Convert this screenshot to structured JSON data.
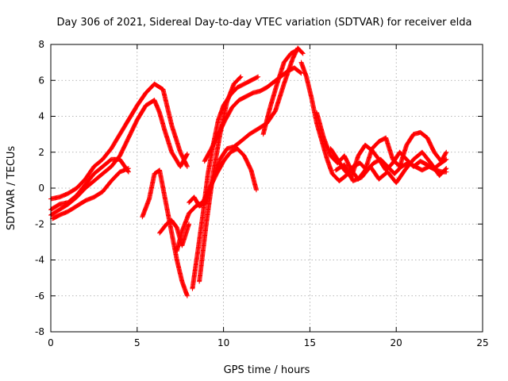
{
  "chart_data": {
    "type": "scatter",
    "title": "Day 306 of 2021, Sidereal Day-to-day VTEC variation (SDTVAR) for receiver elda",
    "xlabel": "GPS time / hours",
    "ylabel": "SDTVAR / TECUs",
    "xlim": [
      0,
      25
    ],
    "ylim": [
      -8,
      8
    ],
    "xticks": [
      0,
      5,
      10,
      15,
      20,
      25
    ],
    "yticks": [
      -8,
      -6,
      -4,
      -2,
      0,
      2,
      4,
      6,
      8
    ],
    "xtick_labels": [
      "0",
      "5",
      "10",
      "15",
      "20",
      "25"
    ],
    "ytick_labels": [
      "-8",
      "-6",
      "-4",
      "-2",
      "0",
      "2",
      "4",
      "6",
      "8"
    ],
    "grid": true,
    "marker": "plus",
    "color": "#ff0000",
    "series": [
      {
        "x": [
          0.0,
          0.5,
          1.0,
          1.5,
          2.0,
          2.5,
          3.0,
          3.5,
          4.0,
          4.5,
          5.0,
          5.5,
          6.0,
          6.5,
          7.0,
          7.5,
          7.9
        ],
        "y": [
          -0.6,
          -0.5,
          -0.3,
          0.0,
          0.5,
          1.2,
          1.6,
          2.2,
          3.0,
          3.8,
          4.6,
          5.3,
          5.8,
          5.5,
          3.5,
          2.0,
          1.2
        ]
      },
      {
        "x": [
          0.0,
          0.5,
          1.0,
          1.5,
          2.0,
          2.5,
          3.0,
          3.5,
          4.0,
          4.5,
          5.0,
          5.5,
          6.0,
          6.3,
          6.6,
          7.0,
          7.5,
          7.9
        ],
        "y": [
          -1.5,
          -1.2,
          -0.9,
          -0.5,
          0.0,
          0.4,
          0.8,
          1.2,
          1.8,
          2.8,
          3.8,
          4.6,
          4.9,
          4.2,
          3.2,
          2.0,
          1.2,
          1.9
        ]
      },
      {
        "x": [
          0.0,
          0.5,
          1.0,
          1.5,
          2.0,
          2.5,
          3.0,
          3.5,
          4.0,
          4.5
        ],
        "y": [
          -1.2,
          -0.9,
          -0.8,
          -0.4,
          0.2,
          0.8,
          1.2,
          1.6,
          1.6,
          0.9
        ]
      },
      {
        "x": [
          0.1,
          0.5,
          1.0,
          1.5,
          2.0,
          2.5,
          3.0,
          3.5,
          4.0,
          4.5
        ],
        "y": [
          -1.7,
          -1.5,
          -1.3,
          -1.0,
          -0.7,
          -0.5,
          -0.2,
          0.4,
          0.9,
          1.1
        ]
      },
      {
        "x": [
          5.3,
          5.7,
          6.0,
          6.3,
          6.6,
          7.0,
          7.3,
          7.6,
          7.9
        ],
        "y": [
          -1.6,
          -0.6,
          0.8,
          1.0,
          -0.5,
          -2.5,
          -4.0,
          -5.2,
          -6.0
        ]
      },
      {
        "x": [
          6.3,
          6.7,
          7.0,
          7.3,
          7.6,
          8.0
        ],
        "y": [
          -2.5,
          -2.0,
          -1.8,
          -2.2,
          -3.2,
          -2.0
        ]
      },
      {
        "x": [
          7.3,
          7.6,
          8.0,
          8.4,
          8.8,
          9.2,
          9.6,
          10.0,
          10.4,
          10.8,
          11.2,
          11.6,
          11.9
        ],
        "y": [
          -3.5,
          -2.4,
          -1.4,
          -1.0,
          -0.8,
          0.0,
          0.8,
          1.5,
          2.0,
          2.2,
          1.8,
          1.0,
          -0.1
        ]
      },
      {
        "x": [
          8.2,
          8.5,
          8.8,
          9.1,
          9.4,
          9.7,
          10.0,
          10.4,
          10.8,
          11.2,
          11.6,
          12.0
        ],
        "y": [
          -5.6,
          -3.6,
          -1.5,
          0.8,
          2.4,
          3.8,
          4.6,
          5.2,
          5.6,
          5.8,
          6.0,
          6.2
        ]
      },
      {
        "x": [
          8.0,
          8.3,
          8.6,
          9.0,
          9.4,
          9.8,
          10.2,
          10.6,
          11.0,
          11.5,
          12.0,
          12.5,
          13.0,
          13.5,
          14.0,
          14.3,
          14.6
        ],
        "y": [
          -0.8,
          -0.5,
          -1.0,
          -0.8,
          0.5,
          1.6,
          2.2,
          2.3,
          2.6,
          3.0,
          3.3,
          3.6,
          4.3,
          5.8,
          7.2,
          7.8,
          7.5
        ]
      },
      {
        "x": [
          8.6,
          9.0,
          9.4,
          9.8,
          10.2,
          10.6,
          11.0
        ],
        "y": [
          -5.2,
          -2.0,
          0.8,
          3.0,
          4.8,
          5.8,
          6.2
        ]
      },
      {
        "x": [
          8.9,
          9.3,
          9.7,
          10.1,
          10.5,
          10.9,
          11.3,
          11.7,
          12.1,
          12.5,
          12.9,
          13.3,
          13.7,
          14.1,
          14.5
        ],
        "y": [
          1.5,
          2.2,
          3.0,
          3.8,
          4.5,
          4.9,
          5.1,
          5.3,
          5.4,
          5.6,
          5.9,
          6.2,
          6.5,
          6.7,
          6.4
        ]
      },
      {
        "x": [
          12.3,
          12.7,
          13.1,
          13.5,
          13.9,
          14.3
        ],
        "y": [
          3.0,
          4.5,
          5.8,
          7.0,
          7.5,
          7.7
        ]
      },
      {
        "x": [
          14.5,
          14.8,
          15.1,
          15.4,
          15.7,
          16.0,
          16.3,
          16.7,
          17.1,
          17.5,
          17.9,
          18.3,
          18.7,
          19.1,
          19.5,
          19.9,
          20.3,
          20.7,
          21.1,
          21.5,
          21.9,
          22.3,
          22.7,
          22.9
        ],
        "y": [
          7.0,
          6.2,
          5.0,
          3.6,
          2.6,
          1.6,
          0.8,
          0.4,
          0.7,
          1.2,
          1.4,
          1.0,
          1.4,
          1.6,
          1.2,
          0.8,
          1.2,
          1.4,
          1.2,
          1.0,
          1.2,
          1.0,
          0.9,
          0.9
        ]
      },
      {
        "x": [
          15.4,
          15.8,
          16.2,
          16.6,
          17.0,
          17.4,
          17.8,
          18.2,
          18.6,
          19.0,
          19.4,
          19.8,
          20.2,
          20.6,
          21.0,
          21.4,
          21.8,
          22.2,
          22.6,
          22.9
        ],
        "y": [
          4.2,
          2.8,
          1.8,
          1.4,
          1.8,
          1.0,
          0.5,
          1.0,
          2.2,
          2.6,
          2.8,
          1.6,
          1.2,
          2.4,
          3.0,
          3.1,
          2.8,
          2.0,
          1.5,
          2.0
        ]
      },
      {
        "x": [
          16.2,
          16.6,
          17.0,
          17.4,
          17.8,
          18.2,
          18.6,
          19.0,
          19.4,
          19.8,
          20.2,
          20.6,
          21.0,
          21.4,
          21.8,
          22.2,
          22.6,
          22.9
        ],
        "y": [
          2.2,
          1.6,
          1.0,
          0.6,
          1.8,
          2.4,
          2.1,
          1.6,
          1.0,
          1.4,
          2.0,
          1.6,
          1.2,
          1.5,
          1.3,
          1.1,
          1.4,
          1.6
        ]
      },
      {
        "x": [
          16.5,
          17.0,
          17.5,
          18.0,
          18.5,
          19.0,
          19.5,
          20.0,
          20.5,
          21.0,
          21.5,
          22.0,
          22.5,
          22.9
        ],
        "y": [
          1.0,
          1.3,
          0.4,
          0.6,
          1.2,
          0.5,
          0.9,
          0.3,
          1.0,
          1.6,
          2.0,
          1.4,
          0.7,
          1.1
        ]
      }
    ]
  }
}
